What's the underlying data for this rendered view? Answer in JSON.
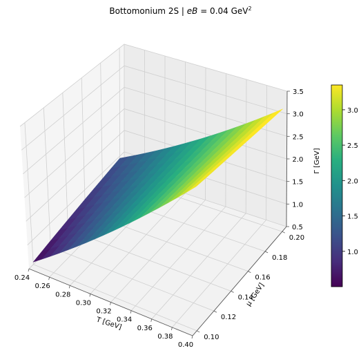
{
  "chart_data": {
    "type": "surface3d",
    "title": {
      "prefix": "Bottomonium 2S  |  ",
      "eB_symbol": "eB",
      "equals_value": " = 0.04 GeV",
      "superscript": "2"
    },
    "xlabel": "T [GeV]",
    "ylabel": "μ [GeV]",
    "zlabel": "Γ [GeV]",
    "xlim": [
      0.24,
      0.4
    ],
    "ylim": [
      0.095,
      0.205
    ],
    "zlim": [
      0.5,
      3.5
    ],
    "xticks": [
      "0.24",
      "0.26",
      "0.28",
      "0.30",
      "0.32",
      "0.34",
      "0.36",
      "0.38",
      "0.40"
    ],
    "yticks": [
      "0.10",
      "0.12",
      "0.14",
      "0.16",
      "0.18",
      "0.20"
    ],
    "zticks": [
      "0.5",
      "1.0",
      "1.5",
      "2.0",
      "2.5",
      "3.0",
      "3.5"
    ],
    "colormap": "viridis",
    "colorbar": {
      "range": [
        0.5,
        3.35
      ],
      "ticks": [
        "1.0",
        "1.5",
        "2.0",
        "2.5",
        "3.0"
      ]
    },
    "surface": {
      "T": [
        0.24,
        0.4
      ],
      "mu": [
        0.1,
        0.2
      ],
      "gamma_corners": {
        "T0.24_mu0.10": 0.55,
        "T0.40_mu0.10": 3.35,
        "T0.24_mu0.20": 0.95,
        "T0.40_mu0.20": 3.2
      }
    },
    "grid": true
  }
}
